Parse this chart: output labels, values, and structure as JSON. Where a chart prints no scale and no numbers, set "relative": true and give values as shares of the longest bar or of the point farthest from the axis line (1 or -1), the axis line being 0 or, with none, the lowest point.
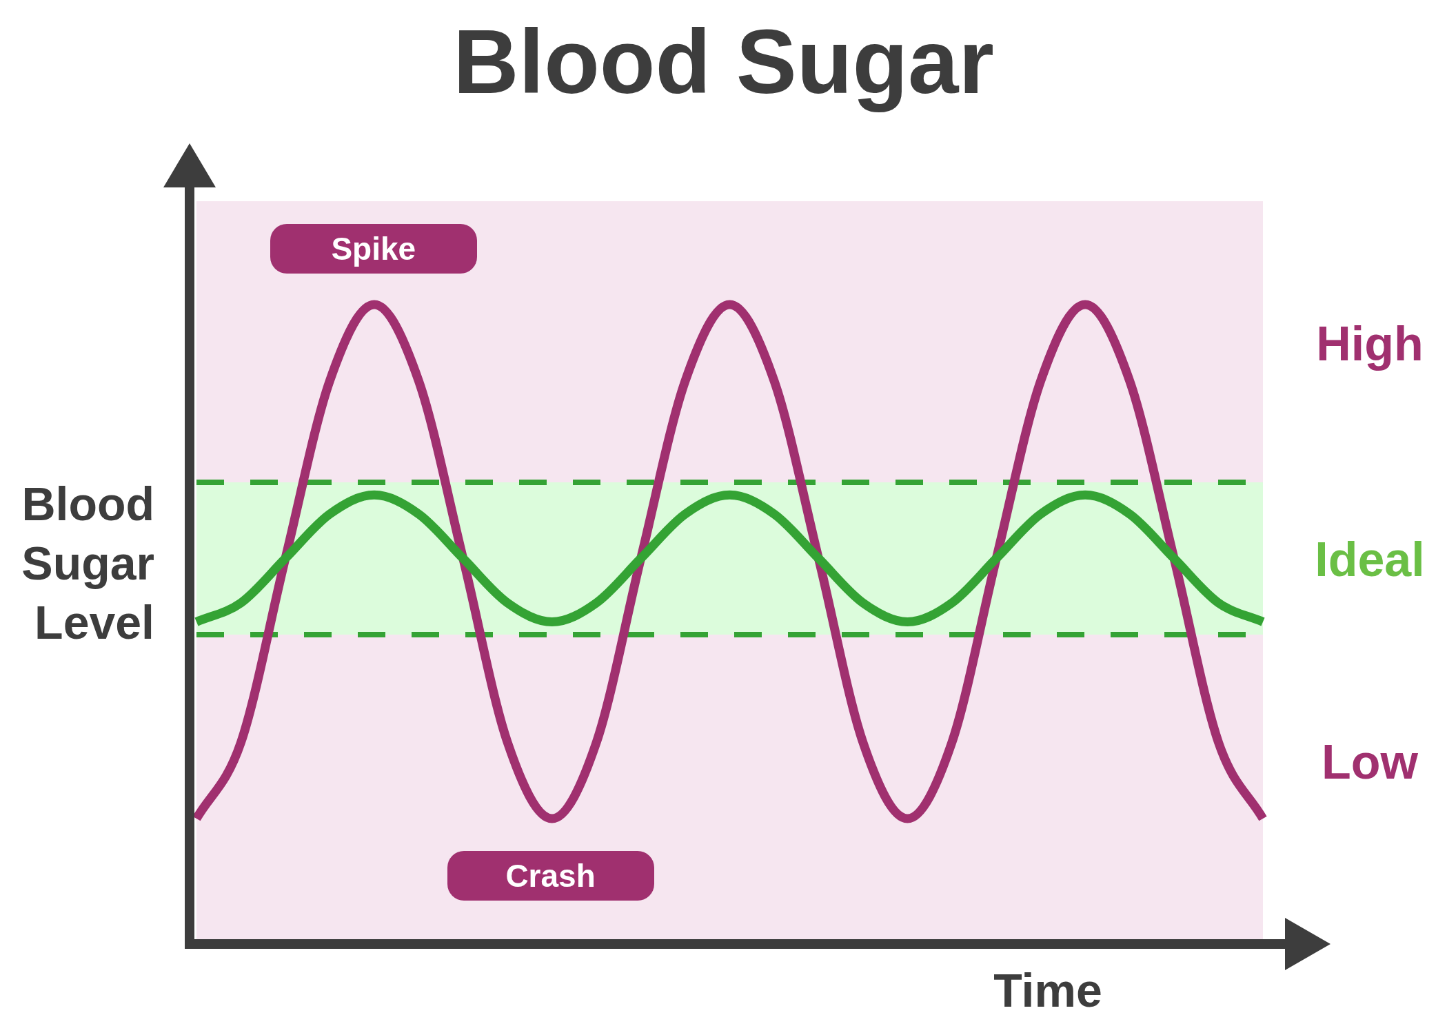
{
  "chart_data": {
    "type": "line",
    "title": "Blood Sugar",
    "xlabel": "Time",
    "ylabel": "Blood Sugar Level",
    "relative": true,
    "legend": false,
    "marker": "none",
    "line_style": "solid",
    "categories": [
      null,
      null,
      null,
      null,
      null,
      null,
      null,
      null,
      null,
      null,
      null,
      null,
      null,
      null,
      null,
      null,
      null,
      null,
      null,
      null,
      null,
      null,
      null,
      null,
      null
    ],
    "series": [
      {
        "color": "#a0306f",
        "values": [
          0.19,
          0.31,
          0.6,
          0.88,
          1,
          0.88,
          0.6,
          0.31,
          0.19,
          0.31,
          0.6,
          0.88,
          1,
          0.88,
          0.6,
          0.31,
          0.19,
          0.31,
          0.6,
          0.88,
          1,
          0.88,
          0.6,
          0.31,
          0.19
        ]
      },
      {
        "color": "#34a334",
        "values": [
          0.5,
          0.53,
          0.6,
          0.67,
          0.7,
          0.67,
          0.6,
          0.53,
          0.5,
          0.53,
          0.6,
          0.67,
          0.7,
          0.67,
          0.6,
          0.53,
          0.5,
          0.53,
          0.6,
          0.67,
          0.7,
          0.67,
          0.6,
          0.53,
          0.5
        ]
      }
    ],
    "bands": [
      {
        "axis": "y",
        "from": 0.48,
        "to": 0.72,
        "color": "#dcfcdc"
      }
    ],
    "ref_lines": [
      {
        "axis": "y",
        "value": 0.72,
        "color": "#34a334",
        "line_style": "dashed"
      },
      {
        "axis": "y",
        "value": 0.48,
        "color": "#34a334",
        "line_style": "dashed"
      }
    ],
    "annotations": [
      "Spike",
      "Crash",
      "High",
      "Ideal",
      "Low"
    ]
  }
}
